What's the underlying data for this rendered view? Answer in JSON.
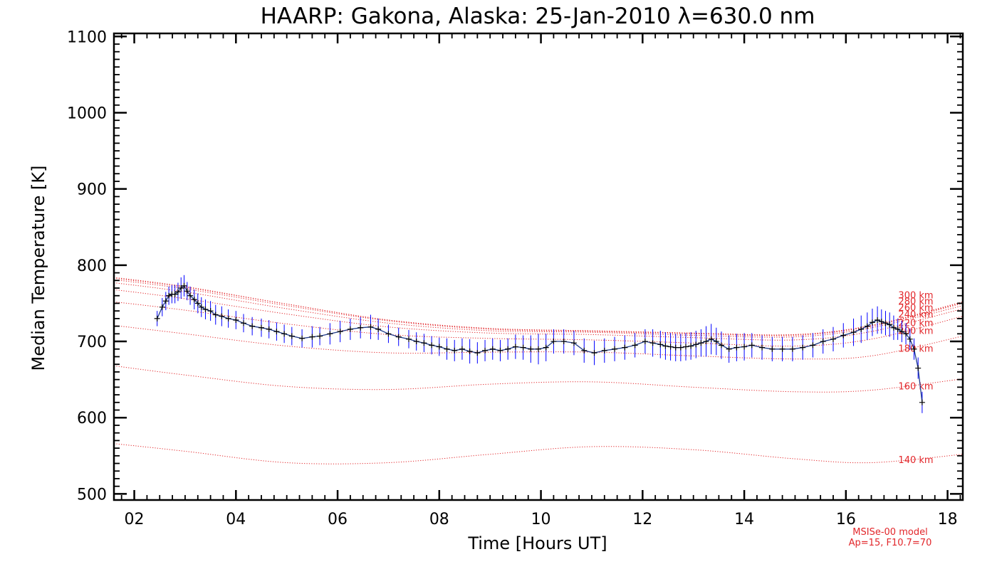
{
  "chart_data": {
    "type": "line",
    "title": "HAARP: Gakona,  Alaska: 25-Jan-2010 λ=630.0 nm",
    "xlabel": "Time [Hours UT]",
    "ylabel": "Median Temperature [K]",
    "xlim": [
      1.6,
      18.3
    ],
    "ylim": [
      492,
      1104
    ],
    "x_ticks": [
      2,
      4,
      6,
      8,
      10,
      12,
      14,
      16,
      18
    ],
    "x_tick_labels": [
      "02",
      "04",
      "06",
      "08",
      "10",
      "12",
      "14",
      "16",
      "18"
    ],
    "y_ticks": [
      500,
      600,
      700,
      800,
      900,
      1000,
      1100
    ],
    "y_tick_labels": [
      "500",
      "600",
      "700",
      "800",
      "900",
      "1000",
      "1100"
    ],
    "grid": false,
    "colors": {
      "measurement": "#000000",
      "errorbar": "#0000ff",
      "connector": "#1e3a8a",
      "model": "#e2262a"
    },
    "model_note": [
      "MSISe-00 model",
      "Ap=15, F10.7=70"
    ],
    "measurements": {
      "x": [
        2.45,
        2.55,
        2.62,
        2.68,
        2.74,
        2.8,
        2.86,
        2.92,
        2.98,
        3.04,
        3.1,
        3.18,
        3.25,
        3.32,
        3.4,
        3.5,
        3.6,
        3.72,
        3.85,
        4.0,
        4.15,
        4.32,
        4.5,
        4.65,
        4.8,
        4.95,
        5.1,
        5.3,
        5.5,
        5.65,
        5.85,
        6.05,
        6.25,
        6.45,
        6.65,
        6.8,
        7.0,
        7.2,
        7.4,
        7.55,
        7.7,
        7.85,
        8.0,
        8.15,
        8.3,
        8.45,
        8.6,
        8.75,
        8.9,
        9.05,
        9.2,
        9.35,
        9.5,
        9.65,
        9.8,
        9.95,
        10.1,
        10.25,
        10.45,
        10.65,
        10.85,
        11.05,
        11.25,
        11.45,
        11.65,
        11.85,
        12.05,
        12.2,
        12.35,
        12.45,
        12.55,
        12.65,
        12.75,
        12.85,
        12.95,
        13.05,
        13.15,
        13.25,
        13.35,
        13.45,
        13.55,
        13.7,
        13.85,
        14.0,
        14.15,
        14.35,
        14.55,
        14.75,
        14.95,
        15.15,
        15.35,
        15.55,
        15.75,
        15.95,
        16.15,
        16.3,
        16.42,
        16.52,
        16.62,
        16.7,
        16.78,
        16.86,
        16.94,
        17.02,
        17.1,
        17.18,
        17.26,
        17.34,
        17.42,
        17.5
      ],
      "y": [
        730,
        745,
        753,
        760,
        762,
        762,
        765,
        770,
        773,
        766,
        760,
        755,
        750,
        745,
        742,
        740,
        735,
        733,
        730,
        728,
        724,
        720,
        718,
        716,
        713,
        710,
        707,
        704,
        706,
        707,
        710,
        713,
        716,
        718,
        719,
        716,
        710,
        706,
        703,
        700,
        698,
        695,
        693,
        690,
        688,
        690,
        687,
        685,
        688,
        690,
        688,
        690,
        693,
        692,
        690,
        690,
        692,
        700,
        700,
        698,
        688,
        685,
        688,
        690,
        692,
        695,
        700,
        698,
        696,
        694,
        693,
        692,
        692,
        693,
        694,
        696,
        698,
        700,
        703,
        700,
        695,
        690,
        692,
        693,
        695,
        692,
        690,
        690,
        690,
        692,
        695,
        700,
        703,
        708,
        712,
        716,
        720,
        725,
        728,
        726,
        724,
        722,
        718,
        716,
        713,
        710,
        703,
        690,
        665,
        620
      ],
      "err": [
        10,
        12,
        12,
        12,
        12,
        12,
        12,
        14,
        14,
        12,
        12,
        13,
        13,
        13,
        13,
        13,
        13,
        13,
        12,
        12,
        12,
        12,
        12,
        12,
        12,
        12,
        12,
        12,
        14,
        12,
        14,
        14,
        14,
        14,
        16,
        14,
        12,
        12,
        12,
        12,
        12,
        12,
        12,
        14,
        14,
        14,
        16,
        14,
        14,
        14,
        14,
        14,
        16,
        16,
        18,
        20,
        18,
        16,
        16,
        16,
        16,
        16,
        16,
        16,
        16,
        16,
        16,
        18,
        18,
        18,
        18,
        18,
        18,
        18,
        18,
        18,
        18,
        20,
        20,
        18,
        18,
        18,
        18,
        18,
        16,
        16,
        16,
        16,
        16,
        16,
        16,
        16,
        16,
        16,
        18,
        18,
        18,
        18,
        18,
        16,
        16,
        16,
        16,
        14,
        14,
        14,
        14,
        14,
        14,
        14
      ]
    },
    "model_profiles": [
      {
        "label": "140 km",
        "x": [
          1.6,
          3,
          5,
          7,
          9,
          11,
          13,
          15,
          16.5,
          18.3
        ],
        "y": [
          566,
          556,
          541,
          541,
          552,
          562,
          558,
          546,
          541,
          552
        ]
      },
      {
        "label": "160 km",
        "x": [
          1.6,
          3,
          5,
          7,
          9,
          11,
          13,
          15,
          16.5,
          18.3
        ],
        "y": [
          668,
          656,
          641,
          637,
          644,
          647,
          640,
          634,
          636,
          651
        ]
      },
      {
        "label": "180 km",
        "x": [
          1.6,
          3,
          5,
          7,
          9,
          11,
          13,
          15,
          16.5,
          18.3
        ],
        "y": [
          721,
          710,
          694,
          685,
          686,
          686,
          681,
          677,
          681,
          707
        ]
      },
      {
        "label": "200 km",
        "x": [
          1.6,
          3,
          5,
          7,
          9,
          11,
          13,
          15,
          16.5,
          18.3
        ],
        "y": [
          752,
          741,
          723,
          709,
          704,
          702,
          698,
          694,
          703,
          733
        ]
      },
      {
        "label": "220 km",
        "x": [
          1.6,
          3,
          5,
          7,
          9,
          11,
          13,
          15,
          16.5,
          18.3
        ],
        "y": [
          768,
          756,
          736,
          719,
          711,
          709,
          705,
          702,
          713,
          743
        ]
      },
      {
        "label": "240 km",
        "x": [
          1.6,
          3,
          5,
          7,
          9,
          11,
          13,
          15,
          16.5,
          18.3
        ],
        "y": [
          777,
          765,
          743,
          724,
          714,
          712,
          708,
          706,
          718,
          747
        ]
      },
      {
        "label": "260 km",
        "x": [
          1.6,
          3,
          5,
          7,
          9,
          11,
          13,
          15,
          16.5,
          18.3
        ],
        "y": [
          781,
          769,
          747,
          727,
          716,
          713,
          710,
          708,
          720,
          750
        ]
      },
      {
        "label": "280 km",
        "x": [
          1.6,
          3,
          5,
          7,
          9,
          11,
          13,
          15,
          16.5,
          18.3
        ],
        "y": [
          783,
          771,
          749,
          728,
          717,
          714,
          711,
          709,
          721,
          751
        ]
      },
      {
        "label": "300 km",
        "x": [
          1.6,
          3,
          5,
          7,
          9,
          11,
          13,
          15,
          16.5,
          18.3
        ],
        "y": [
          784,
          772,
          749,
          728,
          717,
          714,
          711,
          709,
          721,
          752
        ]
      }
    ]
  }
}
